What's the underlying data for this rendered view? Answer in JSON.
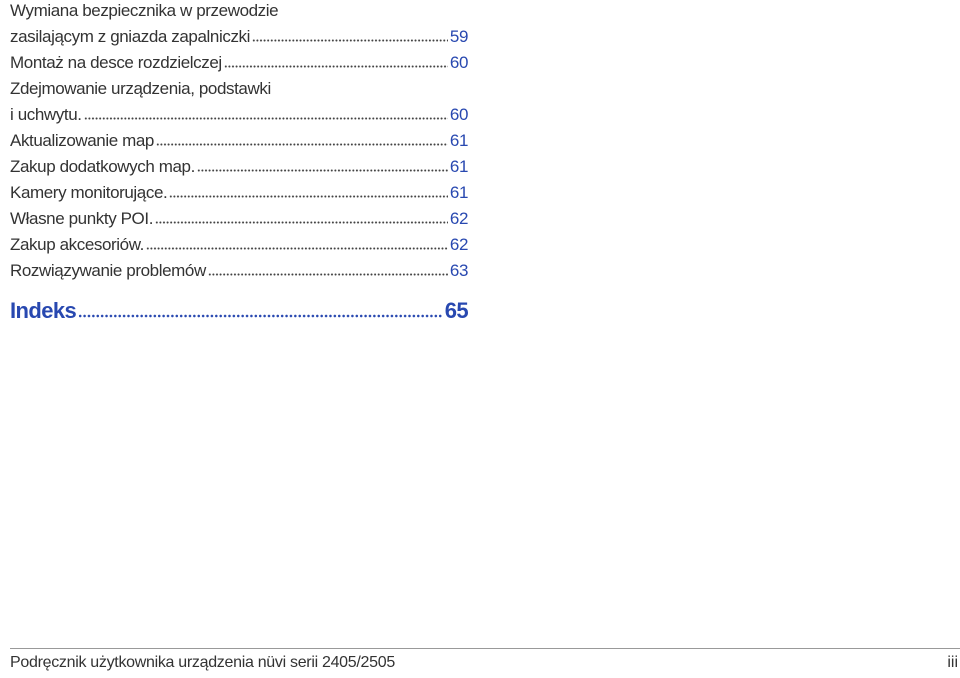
{
  "toc": {
    "entries": [
      {
        "title_lines": [
          "Wymiana bezpiecznika w przewodzie",
          "zasilającym z gniazda zapalniczki"
        ],
        "page": 59
      },
      {
        "title_lines": [
          "Montaż na desce rozdzielczej"
        ],
        "page": 60
      },
      {
        "title_lines": [
          "Zdejmowanie urządzenia, podstawki",
          "i uchwytu."
        ],
        "page": 60
      },
      {
        "title_lines": [
          "Aktualizowanie map"
        ],
        "page": 61
      },
      {
        "title_lines": [
          "Zakup dodatkowych map."
        ],
        "page": 61
      },
      {
        "title_lines": [
          "Kamery monitorujące."
        ],
        "page": 61
      },
      {
        "title_lines": [
          "Własne punkty POI."
        ],
        "page": 62
      },
      {
        "title_lines": [
          "Zakup akcesoriów."
        ],
        "page": 62
      },
      {
        "title_lines": [
          "Rozwiązywanie problemów"
        ],
        "page": 63
      }
    ]
  },
  "index": {
    "title": "Indeks",
    "page": 65
  },
  "footer": {
    "text": "Podręcznik użytkownika urządzenia nüvi serii 2405/2505",
    "page": "iii"
  }
}
